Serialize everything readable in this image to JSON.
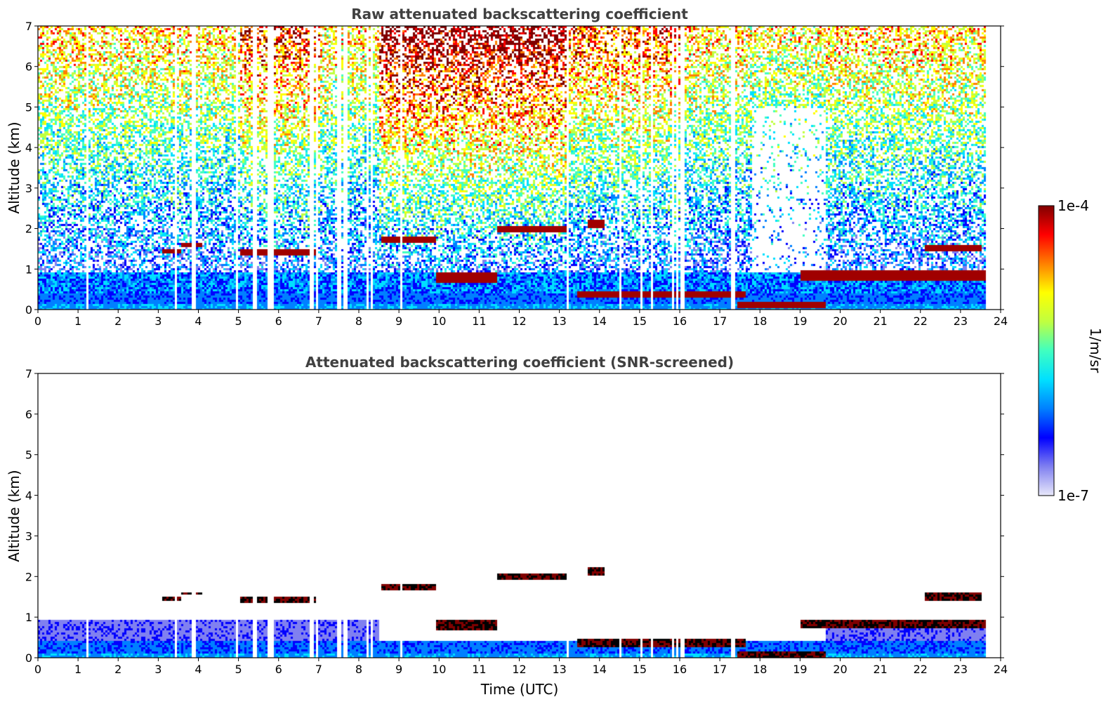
{
  "chart_data": [
    {
      "type": "heatmap",
      "title": "Raw attenuated backscattering coefficient",
      "xlabel": "",
      "ylabel": "Altitude (km)",
      "xlim": [
        0,
        24
      ],
      "ylim": [
        0,
        7
      ],
      "xticks": [
        "0",
        "1",
        "2",
        "3",
        "4",
        "5",
        "6",
        "7",
        "8",
        "9",
        "10",
        "11",
        "12",
        "13",
        "14",
        "15",
        "16",
        "17",
        "18",
        "19",
        "20",
        "21",
        "22",
        "23",
        "24"
      ],
      "yticks": [
        "0",
        "1",
        "2",
        "3",
        "4",
        "5",
        "6",
        "7"
      ],
      "data_end_hour": 23.6,
      "missing_profiles_hours": [
        1.2,
        3.4,
        3.85,
        3.9,
        4.95,
        5.35,
        5.4,
        5.75,
        5.8,
        5.85,
        6.8,
        6.95,
        7.45,
        7.5,
        7.6,
        7.65,
        8.2,
        8.3,
        9.05,
        13.2,
        14.5,
        15.0,
        15.3,
        15.8,
        15.9,
        16.0,
        16.05,
        17.3,
        17.35
      ],
      "layers": [
        {
          "start": 3.05,
          "end": 3.55,
          "base": 1.42,
          "top": 1.52
        },
        {
          "start": 3.55,
          "end": 4.05,
          "base": 1.57,
          "top": 1.65
        },
        {
          "start": 5.0,
          "end": 6.9,
          "base": 1.38,
          "top": 1.52
        },
        {
          "start": 8.55,
          "end": 9.9,
          "base": 1.68,
          "top": 1.85
        },
        {
          "start": 11.4,
          "end": 13.2,
          "base": 1.95,
          "top": 2.08
        },
        {
          "start": 13.7,
          "end": 14.1,
          "base": 2.05,
          "top": 2.25
        },
        {
          "start": 9.9,
          "end": 11.4,
          "base": 0.7,
          "top": 0.95
        },
        {
          "start": 13.4,
          "end": 17.6,
          "base": 0.3,
          "top": 0.5
        },
        {
          "start": 17.4,
          "end": 19.6,
          "base": 0.05,
          "top": 0.2
        },
        {
          "start": 19.0,
          "end": 23.6,
          "base": 0.75,
          "top": 0.98
        },
        {
          "start": 22.1,
          "end": 23.5,
          "base": 1.45,
          "top": 1.62
        }
      ],
      "boundary_layer_top_km": 0.45
    },
    {
      "type": "heatmap",
      "title": "Attenuated backscattering coefficient (SNR-screened)",
      "xlabel": "Time (UTC)",
      "ylabel": "Altitude (km)",
      "xlim": [
        0,
        24
      ],
      "ylim": [
        0,
        7
      ],
      "xticks": [
        "0",
        "1",
        "2",
        "3",
        "4",
        "5",
        "6",
        "7",
        "8",
        "9",
        "10",
        "11",
        "12",
        "13",
        "14",
        "15",
        "16",
        "17",
        "18",
        "19",
        "20",
        "21",
        "22",
        "23",
        "24"
      ],
      "yticks": [
        "0",
        "1",
        "2",
        "3",
        "4",
        "5",
        "6",
        "7"
      ],
      "data_end_hour": 23.6,
      "screened": true
    }
  ],
  "colorbar": {
    "label": "1/m/sr",
    "max_label": "1e-4",
    "min_label": "1e-7",
    "scale": "log",
    "colors": [
      "#e8e8fa",
      "#8080f0",
      "#0000ff",
      "#0080ff",
      "#00e0ff",
      "#40ffc0",
      "#c0ff40",
      "#ffff00",
      "#ff8000",
      "#ff0000",
      "#800000"
    ]
  }
}
